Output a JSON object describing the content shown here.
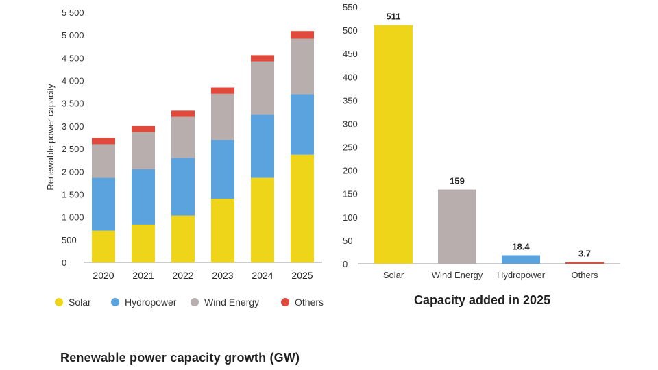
{
  "chart_data": [
    {
      "type": "bar",
      "stacked": true,
      "title": "Renewable power capacity growth (GW)",
      "ylabel": "Renewable power capacity",
      "categories": [
        "2020",
        "2021",
        "2022",
        "2023",
        "2024",
        "2025"
      ],
      "series": [
        {
          "name": "Solar",
          "color": "#efd51a",
          "values": [
            700,
            830,
            1030,
            1400,
            1860,
            2370
          ]
        },
        {
          "name": "Hydropower",
          "color": "#5ba3de",
          "values": [
            1160,
            1220,
            1270,
            1290,
            1390,
            1330
          ]
        },
        {
          "name": "Wind Energy",
          "color": "#b8aeae",
          "values": [
            740,
            820,
            900,
            1020,
            1170,
            1220
          ]
        },
        {
          "name": "Others",
          "color": "#e04a3c",
          "values": [
            140,
            130,
            140,
            140,
            140,
            170
          ]
        }
      ],
      "ylim": [
        0,
        5500
      ],
      "yticks": [
        "0",
        "500",
        "1 000",
        "1 500",
        "2 000",
        "2 500",
        "3 000",
        "3 500",
        "4 000",
        "4 500",
        "5 000",
        "5 500"
      ],
      "grid": false,
      "legend": "bottom"
    },
    {
      "type": "bar",
      "title": "Capacity added in 2025",
      "categories": [
        "Solar",
        "Wind Energy",
        "Hydropower",
        "Others"
      ],
      "values": [
        511,
        159,
        18.4,
        3.7
      ],
      "labels": [
        "511",
        "159",
        "18.4",
        "3.7"
      ],
      "colors": [
        "#efd51a",
        "#b8aeae",
        "#5ba3de",
        "#e04a3c"
      ],
      "ylim": [
        0,
        550
      ],
      "yticks": [
        "0",
        "50",
        "100",
        "150",
        "200",
        "250",
        "300",
        "350",
        "400",
        "450",
        "500",
        "550"
      ],
      "grid": false
    }
  ]
}
